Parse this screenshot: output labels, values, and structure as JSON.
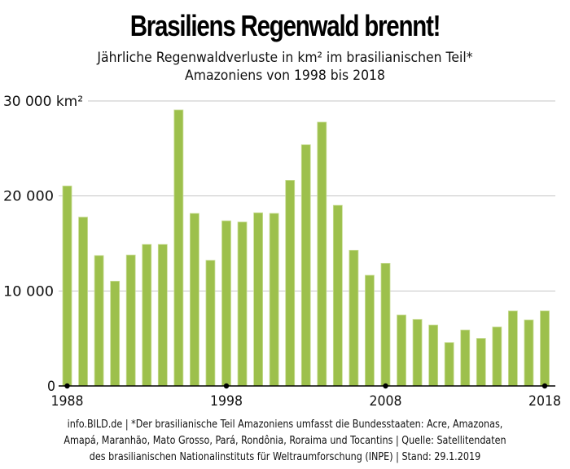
{
  "header": {
    "title": "Brasiliens Regenwald brennt!",
    "subtitle_line1": "Jährliche Regenwaldverluste in km² im brasilianischen Teil*",
    "subtitle_line2": "Amazoniens von 1998 bis 2018"
  },
  "footer": {
    "line1": "info.BILD.de | *Der brasilianische Teil Amazoniens umfasst die Bundesstaaten: Acre, Amazonas,",
    "line2": "Amapá, Maranhão, Mato Grosso, Pará, Rondônia, Roraima und Tocantins | Quelle: Satellitendaten",
    "line3": "des brasilianischen Nationalinstituts für Weltraumforschung (INPE) | Stand: 29.1.2019"
  },
  "colors": {
    "bar": "#9dc04c",
    "bar_edge": "#c9dd95",
    "grid": "#c4c4c4",
    "axis": "#000000"
  },
  "chart_data": {
    "type": "bar",
    "title": "Brasiliens Regenwald brennt!",
    "subtitle": "Jährliche Regenwaldverluste in km² im brasilianischen Teil* Amazoniens von 1998 bis 2018",
    "xlabel": "",
    "ylabel": "km²",
    "ylim": [
      0,
      30000
    ],
    "grid": true,
    "legend": "none",
    "yticks": [
      {
        "value": 0,
        "label": "0"
      },
      {
        "value": 10000,
        "label": "10 000"
      },
      {
        "value": 20000,
        "label": "20 000"
      },
      {
        "value": 30000,
        "label": "30 000 km²"
      }
    ],
    "xticks": [
      {
        "value": 1988,
        "label": "1988"
      },
      {
        "value": 1998,
        "label": "1998"
      },
      {
        "value": 2008,
        "label": "2008"
      },
      {
        "value": 2018,
        "label": "2018"
      }
    ],
    "categories": [
      1988,
      1989,
      1990,
      1991,
      1992,
      1993,
      1994,
      1995,
      1996,
      1997,
      1998,
      1999,
      2000,
      2001,
      2002,
      2003,
      2004,
      2005,
      2006,
      2007,
      2008,
      2009,
      2010,
      2011,
      2012,
      2013,
      2014,
      2015,
      2016,
      2017,
      2018
    ],
    "values": [
      21050,
      17770,
      13730,
      11030,
      13786,
      14896,
      14896,
      29059,
      18161,
      13227,
      17383,
      17259,
      18226,
      18165,
      21651,
      25396,
      27772,
      19014,
      14286,
      11651,
      12911,
      7464,
      7000,
      6418,
      4571,
      5891,
      5012,
      6207,
      7893,
      6947,
      7900
    ]
  }
}
